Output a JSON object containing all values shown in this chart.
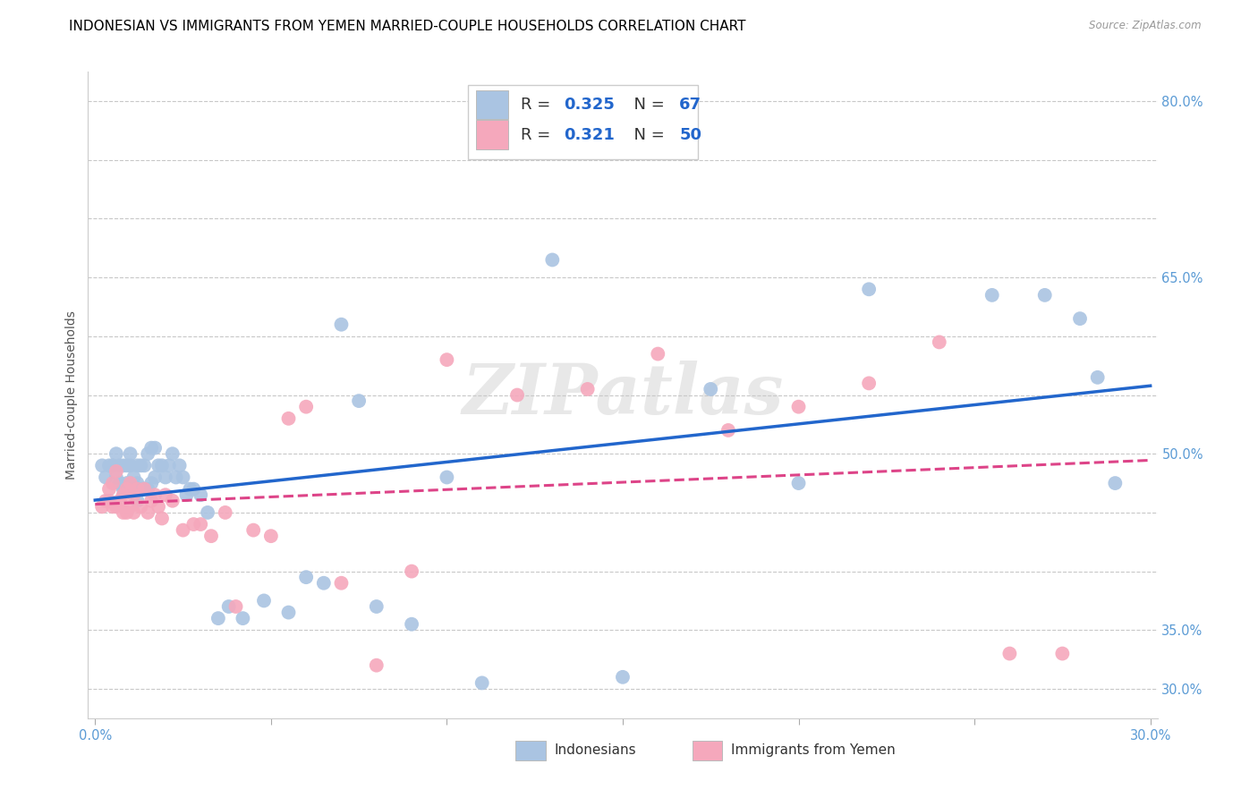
{
  "title": "INDONESIAN VS IMMIGRANTS FROM YEMEN MARRIED-COUPLE HOUSEHOLDS CORRELATION CHART",
  "source": "Source: ZipAtlas.com",
  "ylabel": "Married-couple Households",
  "xlim": [
    -0.002,
    0.302
  ],
  "ylim": [
    0.275,
    0.825
  ],
  "xticks": [
    0.0,
    0.05,
    0.1,
    0.15,
    0.2,
    0.25,
    0.3
  ],
  "xticklabels": [
    "0.0%",
    "",
    "",
    "",
    "",
    "",
    "30.0%"
  ],
  "yticks": [
    0.3,
    0.35,
    0.4,
    0.45,
    0.5,
    0.55,
    0.6,
    0.65,
    0.7,
    0.75,
    0.8
  ],
  "yticklabels": [
    "30.0%",
    "35.0%",
    "",
    "",
    "50.0%",
    "",
    "",
    "65.0%",
    "",
    "",
    "80.0%"
  ],
  "indonesian_color": "#aac4e2",
  "yemen_color": "#f5a8bc",
  "trend_blue": "#2266cc",
  "trend_pink": "#dd4488",
  "label1": "Indonesians",
  "label2": "Immigrants from Yemen",
  "watermark": "ZIPatlas",
  "indonesian_x": [
    0.002,
    0.003,
    0.004,
    0.005,
    0.005,
    0.006,
    0.006,
    0.007,
    0.007,
    0.008,
    0.008,
    0.009,
    0.009,
    0.01,
    0.01,
    0.01,
    0.011,
    0.011,
    0.012,
    0.012,
    0.012,
    0.013,
    0.013,
    0.014,
    0.014,
    0.015,
    0.015,
    0.016,
    0.016,
    0.017,
    0.017,
    0.018,
    0.019,
    0.02,
    0.021,
    0.022,
    0.023,
    0.024,
    0.025,
    0.026,
    0.027,
    0.028,
    0.03,
    0.032,
    0.035,
    0.038,
    0.042,
    0.048,
    0.055,
    0.06,
    0.065,
    0.07,
    0.075,
    0.08,
    0.09,
    0.1,
    0.11,
    0.13,
    0.15,
    0.175,
    0.2,
    0.22,
    0.255,
    0.27,
    0.28,
    0.285,
    0.29
  ],
  "indonesian_y": [
    0.49,
    0.48,
    0.49,
    0.49,
    0.49,
    0.48,
    0.5,
    0.475,
    0.49,
    0.47,
    0.49,
    0.475,
    0.49,
    0.475,
    0.49,
    0.5,
    0.47,
    0.48,
    0.46,
    0.475,
    0.49,
    0.47,
    0.49,
    0.47,
    0.49,
    0.47,
    0.5,
    0.475,
    0.505,
    0.48,
    0.505,
    0.49,
    0.49,
    0.48,
    0.49,
    0.5,
    0.48,
    0.49,
    0.48,
    0.465,
    0.47,
    0.47,
    0.465,
    0.45,
    0.36,
    0.37,
    0.36,
    0.375,
    0.365,
    0.395,
    0.39,
    0.61,
    0.545,
    0.37,
    0.355,
    0.48,
    0.305,
    0.665,
    0.31,
    0.555,
    0.475,
    0.64,
    0.635,
    0.635,
    0.615,
    0.565,
    0.475
  ],
  "yemen_x": [
    0.002,
    0.003,
    0.004,
    0.004,
    0.005,
    0.005,
    0.006,
    0.006,
    0.007,
    0.008,
    0.008,
    0.009,
    0.009,
    0.01,
    0.01,
    0.011,
    0.011,
    0.012,
    0.013,
    0.014,
    0.015,
    0.016,
    0.017,
    0.018,
    0.019,
    0.02,
    0.022,
    0.025,
    0.028,
    0.03,
    0.033,
    0.037,
    0.04,
    0.045,
    0.05,
    0.055,
    0.06,
    0.07,
    0.08,
    0.09,
    0.1,
    0.12,
    0.14,
    0.16,
    0.18,
    0.2,
    0.22,
    0.24,
    0.26,
    0.275
  ],
  "yemen_y": [
    0.455,
    0.46,
    0.46,
    0.47,
    0.455,
    0.475,
    0.455,
    0.485,
    0.46,
    0.465,
    0.45,
    0.47,
    0.45,
    0.455,
    0.475,
    0.465,
    0.45,
    0.47,
    0.455,
    0.47,
    0.45,
    0.46,
    0.465,
    0.455,
    0.445,
    0.465,
    0.46,
    0.435,
    0.44,
    0.44,
    0.43,
    0.45,
    0.37,
    0.435,
    0.43,
    0.53,
    0.54,
    0.39,
    0.32,
    0.4,
    0.58,
    0.55,
    0.555,
    0.585,
    0.52,
    0.54,
    0.56,
    0.595,
    0.33,
    0.33
  ],
  "axis_color": "#5b9bd5",
  "grid_color": "#c8c8c8",
  "title_fontsize": 11,
  "axis_label_fontsize": 10,
  "tick_fontsize": 10.5
}
